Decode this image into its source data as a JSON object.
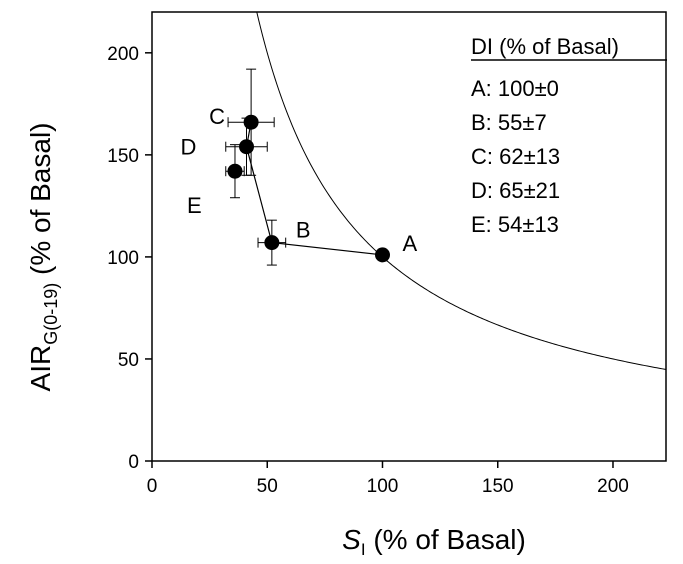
{
  "chart_data": {
    "type": "scatter",
    "title": "",
    "xlabel": {
      "main": "S",
      "sub": "I",
      "rest": " (% of Basal)"
    },
    "ylabel": {
      "main": "AIR",
      "sub": "G(0-19)",
      "rest": " (% of Basal)"
    },
    "xlim": [
      0,
      223
    ],
    "ylim": [
      0,
      220
    ],
    "x_ticks": [
      0,
      50,
      100,
      150,
      200
    ],
    "y_ticks": [
      0,
      50,
      100,
      150,
      200
    ],
    "grid": false,
    "legend_position": "top-right",
    "points": [
      {
        "label": "A",
        "x": 100,
        "y": 101,
        "xerr": 0,
        "yerr": 0
      },
      {
        "label": "B",
        "x": 52,
        "y": 107,
        "xerr": 6,
        "yerr": 11
      },
      {
        "label": "C",
        "x": 43,
        "y": 166,
        "xerr": 10,
        "yerr": 26
      },
      {
        "label": "D",
        "x": 41,
        "y": 154,
        "xerr": 9,
        "yerr": 14
      },
      {
        "label": "E",
        "x": 36,
        "y": 142,
        "xerr": 4,
        "yerr": 13
      }
    ],
    "connecting_line_order": [
      "A",
      "B",
      "D",
      "C"
    ],
    "reference_curve": {
      "type": "hyperbola",
      "constant": 10000
    },
    "legend": {
      "title": "DI (% of Basal)",
      "entries": [
        "A: 100±0",
        "B: 55±7",
        "C: 62±13",
        "D: 65±21",
        "E: 54±13"
      ]
    }
  }
}
